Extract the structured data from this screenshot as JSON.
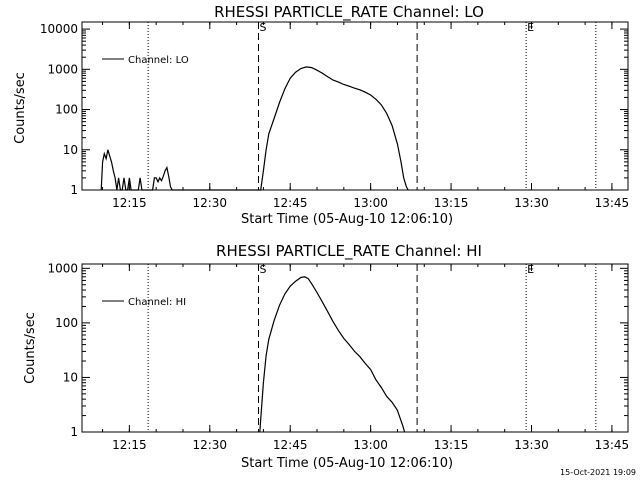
{
  "chart_data": [
    {
      "type": "line",
      "title": "RHESSI PARTICLE_RATE Channel: LO",
      "xlabel": "Start Time (05-Aug-10 12:06:10)",
      "ylabel": "Counts/sec",
      "yscale": "log",
      "ylim": [
        1,
        15000
      ],
      "xlim": [
        "12:06:10",
        "13:48:00"
      ],
      "x_ticks": [
        "12:15",
        "12:30",
        "12:45",
        "13:00",
        "13:15",
        "13:30",
        "13:45"
      ],
      "y_ticks": [
        "1",
        "10",
        "100",
        "1000",
        "10000"
      ],
      "legend": "top-left",
      "series": [
        {
          "name": "Channel: LO",
          "x": [
            "12:09:45",
            "12:10:00",
            "12:10:20",
            "12:10:40",
            "12:11:00",
            "12:11:20",
            "12:11:40",
            "12:12:00",
            "12:12:20",
            "12:12:40",
            "12:13:00",
            "12:13:20",
            "12:13:40",
            "12:14:00",
            "12:14:20",
            "12:14:40",
            "12:15:00",
            "12:15:20",
            "12:15:40",
            "12:16:00",
            "12:16:20",
            "12:16:40",
            "12:17:00",
            "12:17:20",
            "12:17:40",
            "12:19:20",
            "12:19:40",
            "12:20:00",
            "12:20:20",
            "12:20:40",
            "12:21:00",
            "12:21:20",
            "12:21:40",
            "12:22:00",
            "12:22:20",
            "12:22:40",
            "12:23:00",
            "12:39:30",
            "12:40:00",
            "12:40:30",
            "12:41:00",
            "12:42:00",
            "12:43:00",
            "12:44:00",
            "12:45:00",
            "12:46:00",
            "12:47:00",
            "12:48:00",
            "12:49:00",
            "12:50:00",
            "12:51:00",
            "12:52:00",
            "12:53:00",
            "12:54:00",
            "12:55:00",
            "12:56:00",
            "12:57:00",
            "12:58:00",
            "12:59:00",
            "13:00:00",
            "13:01:00",
            "13:02:00",
            "13:03:00",
            "13:04:00",
            "13:05:00",
            "13:05:40",
            "13:06:10",
            "13:06:40",
            "13:07:00"
          ],
          "y": [
            1,
            5,
            8,
            6,
            10,
            7,
            5,
            3,
            2,
            1,
            2,
            1,
            1,
            2,
            1,
            1,
            2,
            1,
            1,
            1,
            1,
            1,
            2,
            1,
            1,
            1,
            2,
            2,
            1.6,
            2,
            1.7,
            2.2,
            3,
            3.6,
            2.2,
            1.2,
            1,
            1,
            3,
            10,
            25,
            60,
            150,
            330,
            600,
            850,
            1050,
            1150,
            1100,
            950,
            800,
            650,
            540,
            480,
            420,
            380,
            340,
            310,
            270,
            230,
            180,
            130,
            80,
            40,
            14,
            5,
            2,
            1.2,
            1
          ],
          "color": "#000000"
        }
      ],
      "vertical_markers": [
        {
          "x": "12:18:30",
          "style": "dotted",
          "label": ""
        },
        {
          "x": "12:39:05",
          "style": "dashed",
          "label": "S"
        },
        {
          "x": "13:08:40",
          "style": "dashed",
          "label": ""
        },
        {
          "x": "13:29:00",
          "style": "dotted",
          "label": "E"
        },
        {
          "x": "13:42:00",
          "style": "dotted",
          "label": ""
        }
      ]
    },
    {
      "type": "line",
      "title": "RHESSI PARTICLE_RATE Channel: HI",
      "xlabel": "Start Time (05-Aug-10 12:06:10)",
      "ylabel": "Counts/sec",
      "yscale": "log",
      "ylim": [
        1,
        1200
      ],
      "xlim": [
        "12:06:10",
        "13:48:00"
      ],
      "x_ticks": [
        "12:15",
        "12:30",
        "12:45",
        "13:00",
        "13:15",
        "13:30",
        "13:45"
      ],
      "y_ticks": [
        "1",
        "10",
        "100",
        "1000"
      ],
      "legend": "top-left",
      "series": [
        {
          "name": "Channel: HI",
          "x": [
            "12:39:20",
            "12:40:00",
            "12:40:30",
            "12:41:00",
            "12:42:00",
            "12:43:00",
            "12:44:00",
            "12:45:00",
            "12:46:00",
            "12:47:00",
            "12:47:40",
            "12:48:20",
            "12:49:00",
            "12:50:00",
            "12:51:00",
            "12:52:00",
            "12:53:00",
            "12:54:00",
            "12:55:00",
            "12:56:00",
            "12:57:00",
            "12:58:00",
            "12:59:00",
            "13:00:00",
            "13:01:00",
            "13:02:00",
            "13:03:00",
            "13:04:00",
            "13:05:00",
            "13:05:30",
            "13:06:00",
            "13:06:20"
          ],
          "y": [
            1,
            8,
            25,
            50,
            110,
            210,
            340,
            470,
            580,
            680,
            700,
            650,
            520,
            360,
            240,
            160,
            105,
            72,
            52,
            40,
            30,
            24,
            18,
            14,
            9,
            6.5,
            4.5,
            3.5,
            2.5,
            1.8,
            1.3,
            1
          ],
          "color": "#000000"
        }
      ],
      "vertical_markers": [
        {
          "x": "12:18:30",
          "style": "dotted",
          "label": ""
        },
        {
          "x": "12:39:05",
          "style": "dashed",
          "label": "S"
        },
        {
          "x": "13:08:40",
          "style": "dashed",
          "label": ""
        },
        {
          "x": "13:29:00",
          "style": "dotted",
          "label": "E"
        },
        {
          "x": "13:42:00",
          "style": "dotted",
          "label": ""
        }
      ]
    }
  ],
  "footer": {
    "timestamp": "15-Oct-2021 19:09"
  }
}
